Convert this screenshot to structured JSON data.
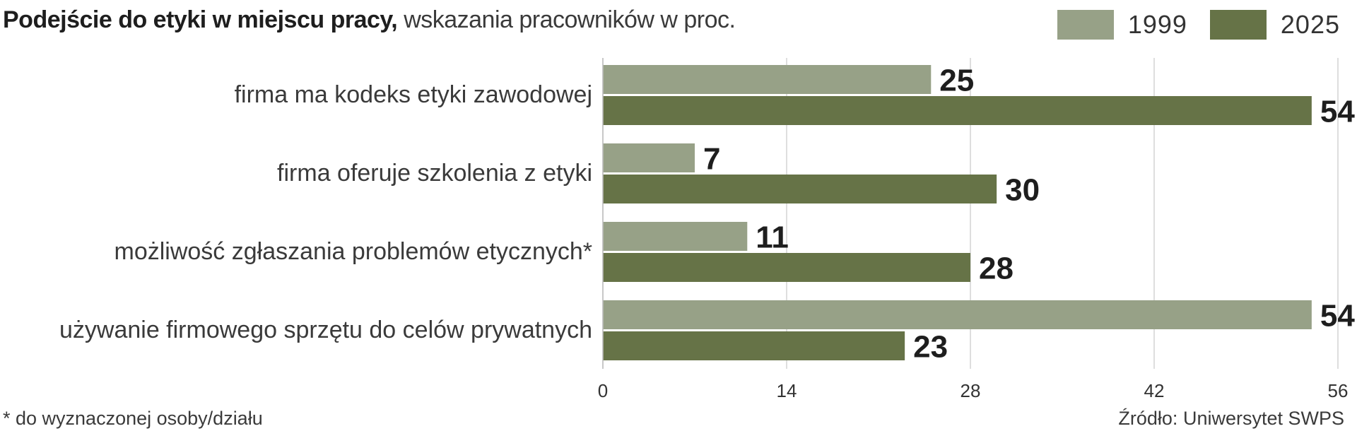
{
  "title": {
    "bold": "Podejście do etyki w miejscu pracy,",
    "rest": "wskazania pracowników w proc."
  },
  "legend": [
    {
      "label": "1999",
      "color": "#97a187"
    },
    {
      "label": "2025",
      "color": "#667347"
    }
  ],
  "chart_data": {
    "type": "bar",
    "orientation": "horizontal",
    "categories": [
      "firma ma kodeks etyki zawodowej",
      "firma oferuje szkolenia z etyki",
      "możliwość zgłaszania problemów etycznych*",
      "używanie firmowego sprzętu do celów prywatnych"
    ],
    "series": [
      {
        "name": "1999",
        "color": "#97a187",
        "values": [
          25,
          7,
          11,
          54
        ]
      },
      {
        "name": "2025",
        "color": "#667347",
        "values": [
          54,
          30,
          28,
          23
        ]
      }
    ],
    "xlim": [
      0,
      56
    ],
    "xticks": [
      0,
      14,
      28,
      42,
      56
    ],
    "grid": true,
    "legend_position": "top-right"
  },
  "footnote": "* do wyznaczonej osoby/działu",
  "source": "Źródło: Uniwersytet SWPS"
}
